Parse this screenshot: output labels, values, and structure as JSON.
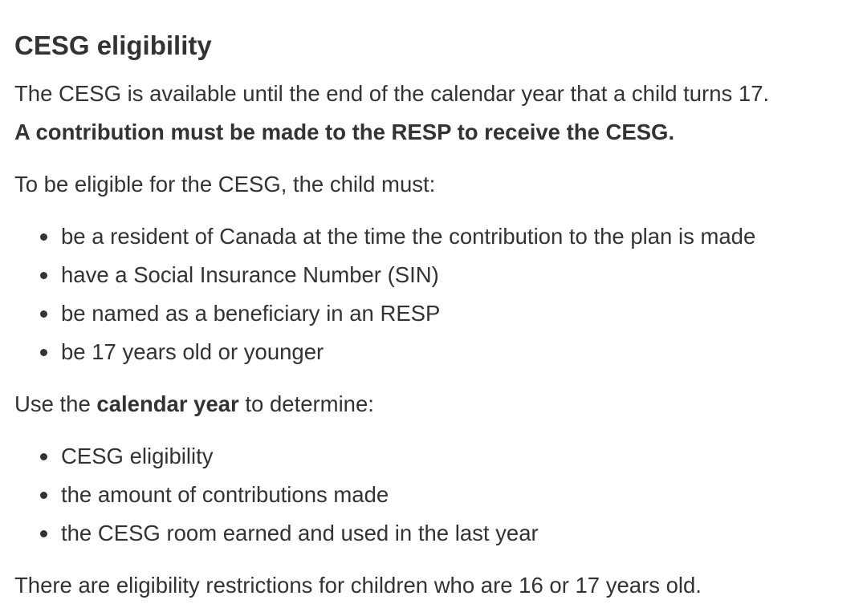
{
  "heading": "CESG eligibility",
  "intro": "The CESG is available until the end of the calendar year that a child turns 17.",
  "contribution_note": "A contribution must be made to the RESP to receive the CESG.",
  "eligibility_lead": "To be eligible for the CESG, the child must:",
  "eligibility_items": [
    "be a resident of Canada at the time the contribution to the plan is made",
    "have a Social Insurance Number (SIN)",
    "be named as a beneficiary in an RESP",
    "be 17 years old or younger"
  ],
  "calendar": {
    "prefix": "Use the ",
    "bold": "calendar year",
    "suffix": " to determine:"
  },
  "calendar_items": [
    "CESG eligibility",
    "the amount of contributions made",
    "the CESG room earned and used in the last year"
  ],
  "restriction_note": "There are eligibility restrictions for children who are 16 or 17 years old."
}
